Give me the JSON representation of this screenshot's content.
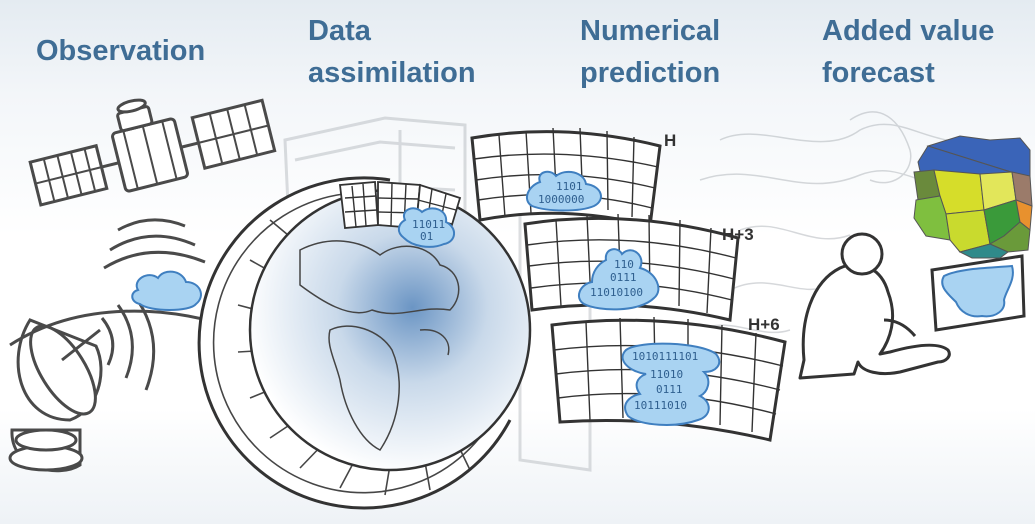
{
  "headings": {
    "observation": "Observation",
    "assimilation": [
      "Data",
      "assimilation"
    ],
    "prediction": [
      "Numerical",
      "prediction"
    ],
    "forecast": [
      "Added value",
      "forecast"
    ]
  },
  "frames": {
    "h": "H",
    "h3": "H+3",
    "h6": "H+6"
  },
  "binary": {
    "globe": [
      "11011",
      "01"
    ],
    "frame_h": [
      "1101",
      "1000000"
    ],
    "frame_h3": [
      "110",
      "0111",
      "11010100"
    ],
    "frame_h6": [
      "1010111101",
      "11010",
      "0111",
      "10111010"
    ]
  },
  "colors": {
    "heading": "#3f6d95",
    "cloud_fill": "#a9d3f2",
    "cloud_stroke": "#3f7fc0",
    "line": "#555555"
  },
  "icons": [
    "satellite-icon",
    "radar-dish-icon",
    "globe-icon",
    "forecaster-icon",
    "africa-map-icon"
  ]
}
